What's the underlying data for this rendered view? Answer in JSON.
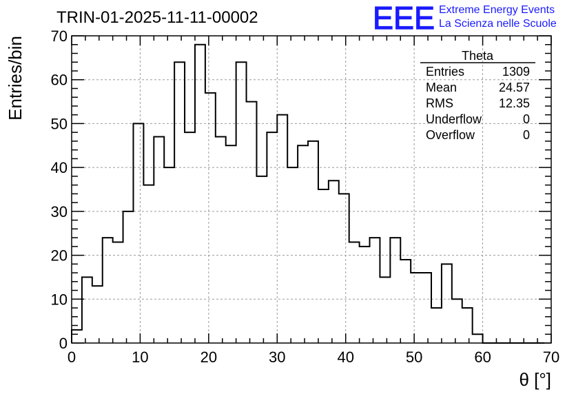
{
  "chart_data": {
    "type": "histogram",
    "title": "TRIN-01-2025-11-11-00002",
    "xlabel": "θ [°]",
    "ylabel": "Entries/bin",
    "xlim": [
      0,
      70
    ],
    "ylim": [
      0,
      70
    ],
    "bin_width": 1.5,
    "bin_start": 0,
    "values": [
      3,
      15,
      13,
      24,
      23,
      30,
      50,
      36,
      47,
      40,
      64,
      48,
      68,
      57,
      47,
      45,
      64,
      55,
      38,
      48,
      52,
      40,
      45,
      46,
      35,
      37,
      34,
      23,
      22,
      24,
      15,
      24,
      19,
      16,
      16,
      8,
      18,
      10,
      8,
      2,
      0,
      0,
      0,
      0,
      0,
      0
    ],
    "x_ticks": [
      0,
      10,
      20,
      30,
      40,
      50,
      60,
      70
    ],
    "y_ticks": [
      0,
      10,
      20,
      30,
      40,
      50,
      60,
      70
    ],
    "grid": true,
    "color": "#000000"
  },
  "stats": {
    "name": "Theta",
    "rows": [
      {
        "label": "Entries",
        "value": "1309"
      },
      {
        "label": "Mean",
        "value": "24.57"
      },
      {
        "label": "RMS",
        "value": "12.35"
      },
      {
        "label": "Underflow",
        "value": "0"
      },
      {
        "label": "Overflow",
        "value": "0"
      }
    ]
  },
  "logo": {
    "mark": "EEE",
    "line1": "Extreme Energy Events",
    "line2": "La Scienza nelle Scuole",
    "color": "#1a1aff"
  }
}
